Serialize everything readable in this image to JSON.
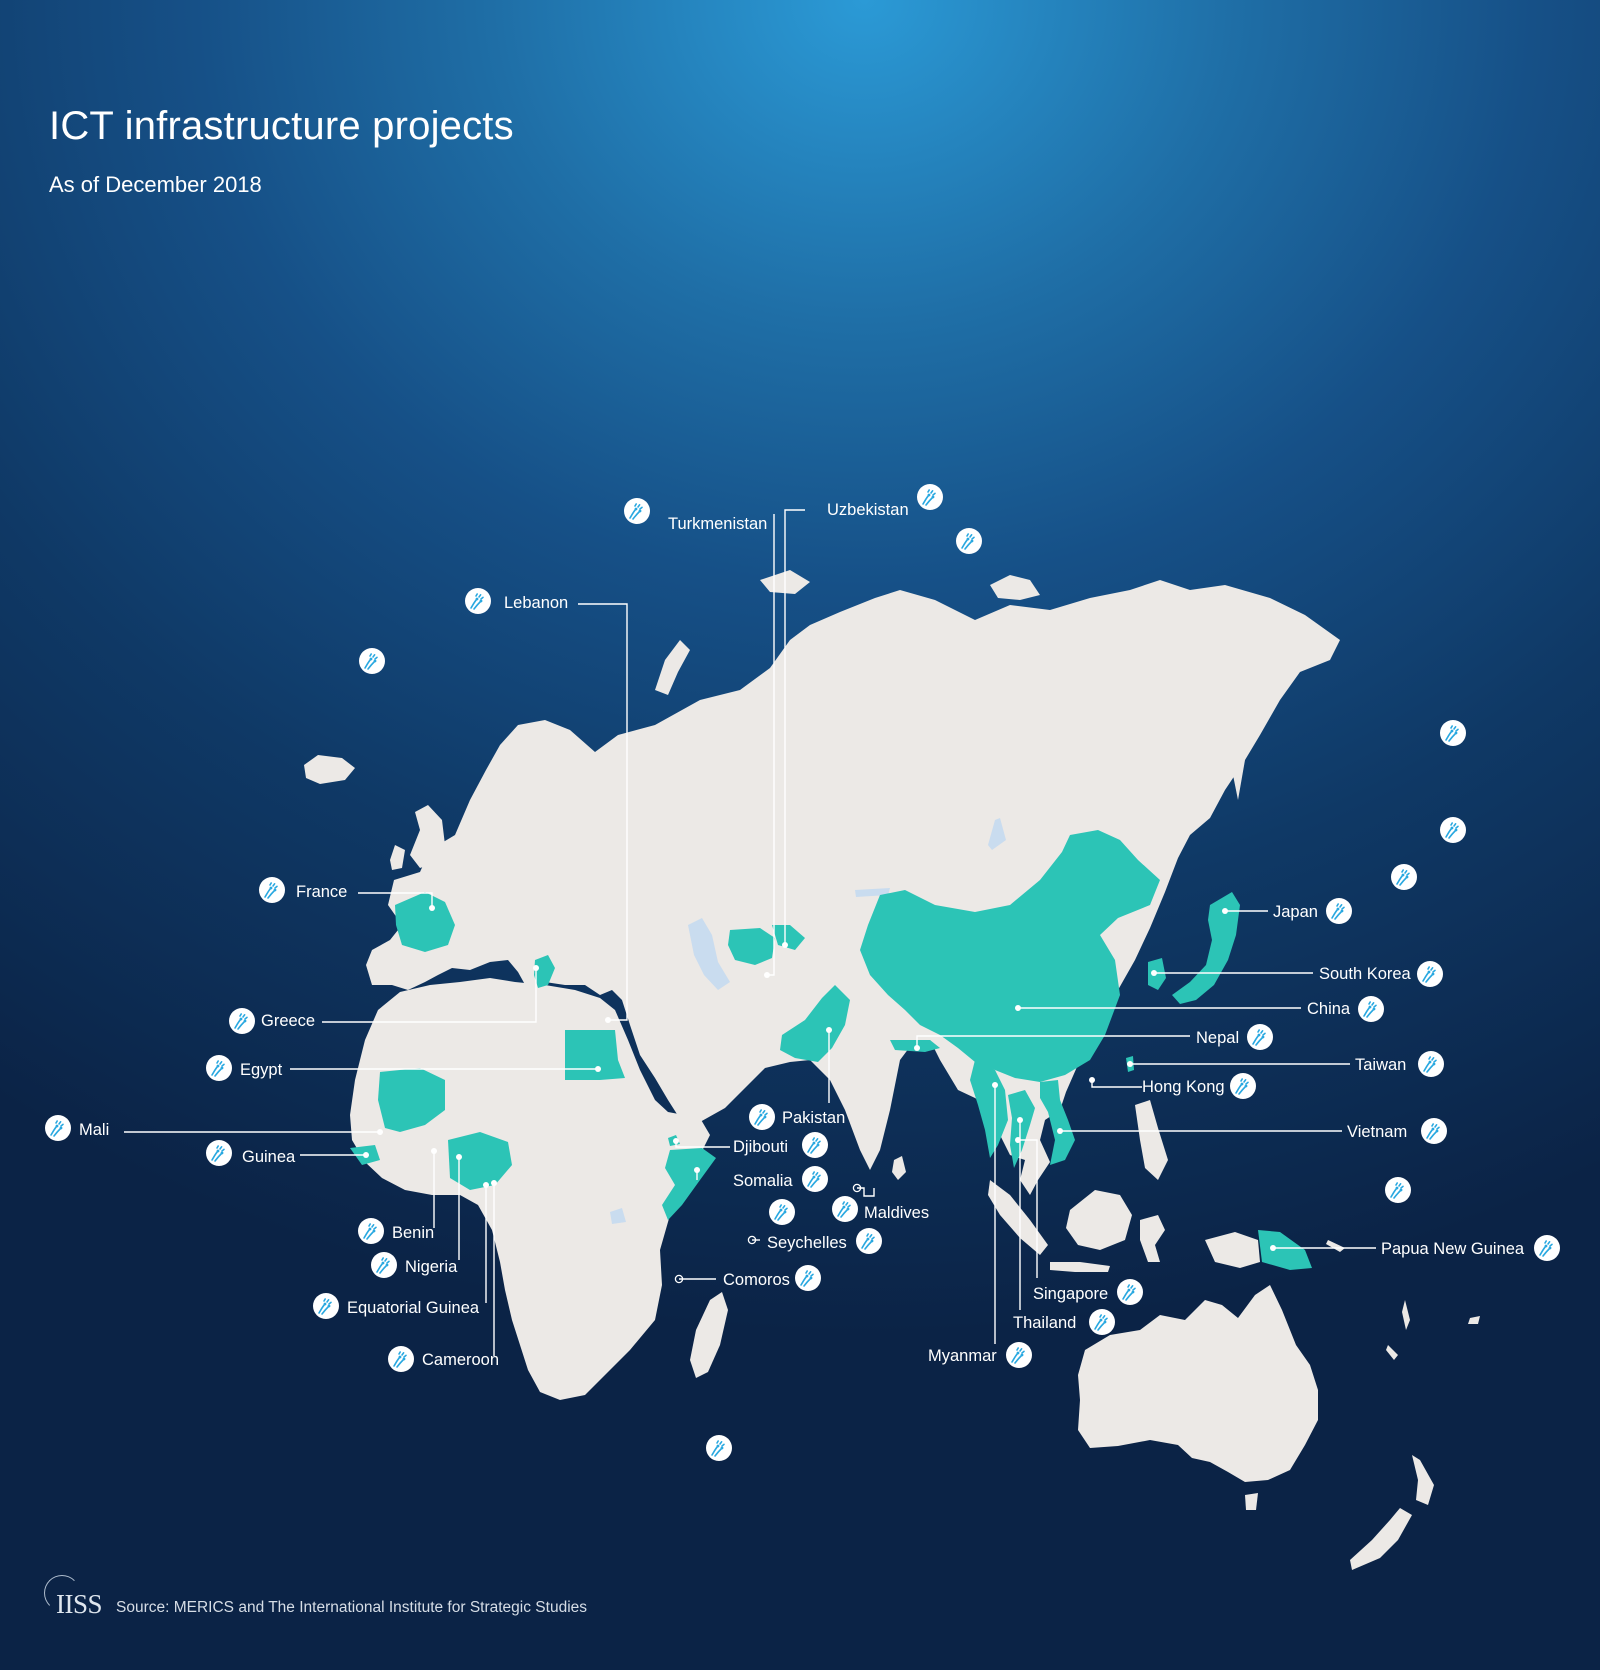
{
  "header": {
    "title": "ICT infrastructure projects",
    "subtitle": "As of December 2018"
  },
  "map": {
    "colors": {
      "highlight": "#2cc4b6",
      "land": "#ece9e6",
      "ocean_light": "#2b9ad6",
      "ocean_dark": "#0b2346",
      "icon_fill": "#29a8e0",
      "label": "#ffffff"
    },
    "icon_name": "fiber-optic-cable-icon",
    "marker_types": [
      "dot",
      "ring"
    ],
    "countries": [
      {
        "id": "turkmenistan",
        "name": "Turkmenistan",
        "marker": "dot"
      },
      {
        "id": "uzbekistan",
        "name": "Uzbekistan",
        "marker": "dot"
      },
      {
        "id": "lebanon",
        "name": "Lebanon",
        "marker": "dot"
      },
      {
        "id": "france",
        "name": "France",
        "marker": "dot"
      },
      {
        "id": "greece",
        "name": "Greece",
        "marker": "dot"
      },
      {
        "id": "egypt",
        "name": "Egypt",
        "marker": "dot"
      },
      {
        "id": "mali",
        "name": "Mali",
        "marker": "dot"
      },
      {
        "id": "guinea",
        "name": "Guinea",
        "marker": "dot"
      },
      {
        "id": "benin",
        "name": "Benin",
        "marker": "dot"
      },
      {
        "id": "nigeria",
        "name": "Nigeria",
        "marker": "dot"
      },
      {
        "id": "equatorial-guinea",
        "name": "Equatorial Guinea",
        "marker": "dot"
      },
      {
        "id": "cameroon",
        "name": "Cameroon",
        "marker": "dot"
      },
      {
        "id": "pakistan",
        "name": "Pakistan",
        "marker": "dot"
      },
      {
        "id": "djibouti",
        "name": "Djibouti",
        "marker": "dot"
      },
      {
        "id": "somalia",
        "name": "Somalia",
        "marker": "dot"
      },
      {
        "id": "maldives",
        "name": "Maldives",
        "marker": "ring"
      },
      {
        "id": "seychelles",
        "name": "Seychelles",
        "marker": "ring"
      },
      {
        "id": "comoros",
        "name": "Comoros",
        "marker": "ring"
      },
      {
        "id": "japan",
        "name": "Japan",
        "marker": "dot"
      },
      {
        "id": "south-korea",
        "name": "South Korea",
        "marker": "dot"
      },
      {
        "id": "china",
        "name": "China",
        "marker": "dot"
      },
      {
        "id": "nepal",
        "name": "Nepal",
        "marker": "dot"
      },
      {
        "id": "taiwan",
        "name": "Taiwan",
        "marker": "dot"
      },
      {
        "id": "hong-kong",
        "name": "Hong Kong",
        "marker": "dot"
      },
      {
        "id": "vietnam",
        "name": "Vietnam",
        "marker": "dot"
      },
      {
        "id": "papua-new-guinea",
        "name": "Papua New Guinea",
        "marker": "dot"
      },
      {
        "id": "singapore",
        "name": "Singapore",
        "marker": "dot"
      },
      {
        "id": "thailand",
        "name": "Thailand",
        "marker": "dot"
      },
      {
        "id": "myanmar",
        "name": "Myanmar",
        "marker": "dot"
      }
    ]
  },
  "footer": {
    "logo": "IISS",
    "source": "Source: MERICS and The International Institute for Strategic Studies"
  }
}
